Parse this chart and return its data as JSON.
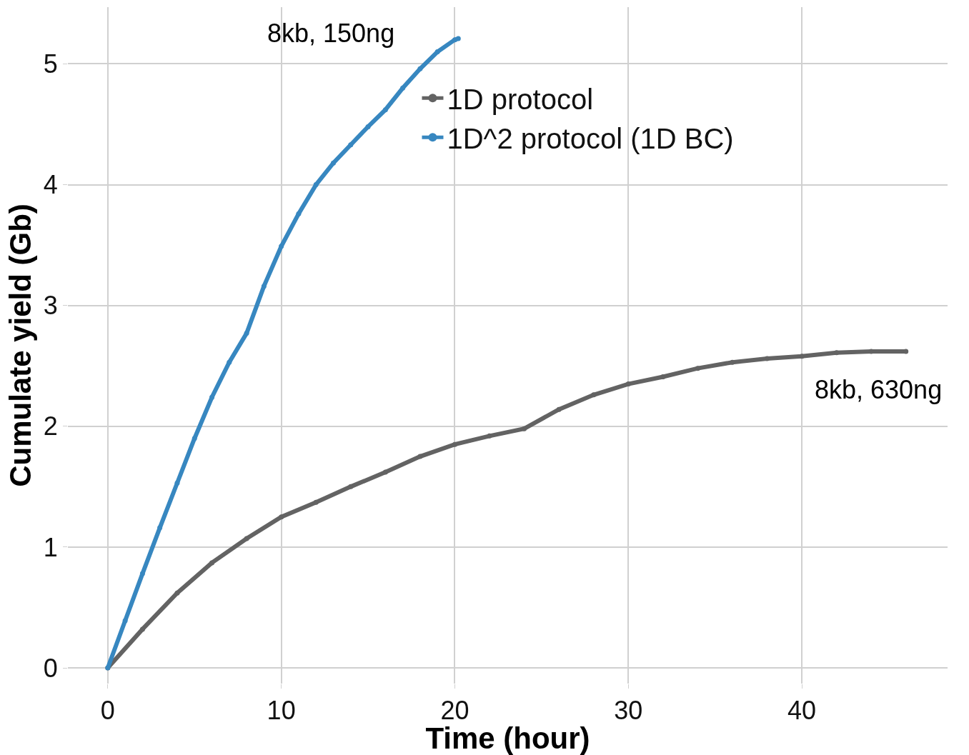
{
  "chart_data": {
    "type": "line",
    "xlabel": "Time (hour)",
    "ylabel": "Cumulate yield (Gb)",
    "xlim": [
      -2.3,
      48.4
    ],
    "ylim": [
      -0.13,
      5.47
    ],
    "xticks": [
      0,
      10,
      20,
      30,
      40
    ],
    "yticks": [
      0,
      1,
      2,
      3,
      4,
      5
    ],
    "grid": true,
    "legend": "top",
    "marker": "circle",
    "series": [
      {
        "name": "1D protocol",
        "color": "#636363",
        "x": [
          0,
          2,
          4,
          6,
          8,
          10,
          12,
          14,
          16,
          18,
          20,
          22,
          24,
          26,
          28,
          30,
          32,
          34,
          36,
          38,
          40,
          42,
          44,
          46
        ],
        "values": [
          0,
          0.32,
          0.62,
          0.87,
          1.07,
          1.25,
          1.37,
          1.5,
          1.62,
          1.75,
          1.85,
          1.92,
          1.98,
          2.14,
          2.26,
          2.35,
          2.41,
          2.48,
          2.53,
          2.56,
          2.58,
          2.61,
          2.62,
          2.62
        ]
      },
      {
        "name": "1D^2 protocol (1D BC)",
        "color": "#3787c0",
        "x": [
          0,
          1,
          2,
          3,
          4,
          5,
          6,
          7,
          8,
          9,
          10,
          11,
          12,
          13,
          14,
          15,
          16,
          17,
          18,
          19,
          20,
          20.2
        ],
        "values": [
          0,
          0.39,
          0.78,
          1.16,
          1.53,
          1.9,
          2.24,
          2.53,
          2.77,
          3.16,
          3.49,
          3.76,
          4.0,
          4.18,
          4.33,
          4.48,
          4.62,
          4.8,
          4.96,
          5.1,
          5.2,
          5.21
        ]
      }
    ],
    "annotations": [
      "8kb, 150ng",
      "8kb, 630ng"
    ]
  }
}
